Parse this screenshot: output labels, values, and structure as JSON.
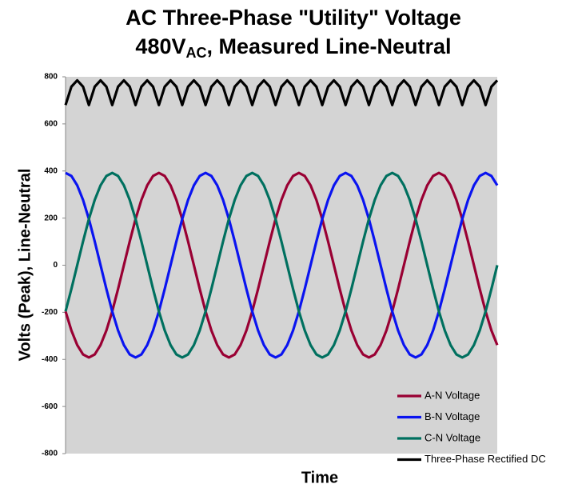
{
  "chart_data": {
    "type": "line",
    "title": "AC Three-Phase \"Utility\" Voltage",
    "subtitle": [
      "480V",
      "AC",
      ", Measured Line-Neutral"
    ],
    "ylabel": "Volts (Peak), Line-Neutral",
    "xlabel": "Time",
    "ylim": [
      -800,
      800
    ],
    "yticks": [
      -800,
      -600,
      -400,
      -200,
      0,
      200,
      400,
      600,
      800
    ],
    "grid": false,
    "legend": "lower right",
    "background": "#d4d4d4",
    "series": [
      {
        "name": "A-N Voltage",
        "color": "#990033",
        "values": [
          -196,
          -277,
          -339,
          -379,
          -392,
          -379,
          -339,
          -277,
          -196,
          -101,
          0,
          101,
          196,
          277,
          339,
          379,
          392,
          379,
          339,
          277,
          196,
          101,
          0,
          -101,
          -196,
          -277,
          -339,
          -379,
          -392,
          -379,
          -339,
          -277,
          -196,
          -101,
          0,
          101,
          196,
          277,
          339,
          379,
          392,
          379,
          339,
          277,
          196,
          101,
          0,
          -101,
          -196,
          -277,
          -339,
          -379,
          -392,
          -379,
          -339,
          -277,
          -196,
          -101,
          0,
          101,
          196,
          277,
          339,
          379,
          392,
          379,
          339,
          277,
          196,
          101,
          0,
          -101,
          -196,
          -277,
          -339
        ]
      },
      {
        "name": "B-N Voltage",
        "color": "#0a14f0",
        "values": [
          392,
          379,
          339,
          277,
          196,
          101,
          0,
          -101,
          -196,
          -277,
          -339,
          -379,
          -392,
          -379,
          -339,
          -277,
          -196,
          -101,
          0,
          101,
          196,
          277,
          339,
          379,
          392,
          379,
          339,
          277,
          196,
          101,
          0,
          -101,
          -196,
          -277,
          -339,
          -379,
          -392,
          -379,
          -339,
          -277,
          -196,
          -101,
          0,
          101,
          196,
          277,
          339,
          379,
          392,
          379,
          339,
          277,
          196,
          101,
          0,
          -101,
          -196,
          -277,
          -339,
          -379,
          -392,
          -379,
          -339,
          -277,
          -196,
          -101,
          0,
          101,
          196,
          277,
          339,
          379,
          392,
          379,
          339
        ]
      },
      {
        "name": "C-N Voltage",
        "color": "#00705f",
        "values": [
          -196,
          -101,
          0,
          101,
          196,
          277,
          339,
          379,
          392,
          379,
          339,
          277,
          196,
          101,
          0,
          -101,
          -196,
          -277,
          -339,
          -379,
          -392,
          -379,
          -339,
          -277,
          -196,
          -101,
          0,
          101,
          196,
          277,
          339,
          379,
          392,
          379,
          339,
          277,
          196,
          101,
          0,
          -101,
          -196,
          -277,
          -339,
          -379,
          -392,
          -379,
          -339,
          -277,
          -196,
          -101,
          0,
          101,
          196,
          277,
          339,
          379,
          392,
          379,
          339,
          277,
          196,
          101,
          0,
          -101,
          -196,
          -277,
          -339,
          -379,
          -392,
          -379,
          -339,
          -277,
          -196,
          -101,
          0
        ]
      },
      {
        "name": "Three-Phase Rectified DC",
        "color": "#000000",
        "values": [
          680,
          758,
          785,
          758,
          680,
          758,
          785,
          758,
          680,
          758,
          785,
          758,
          680,
          758,
          785,
          758,
          680,
          758,
          785,
          758,
          680,
          758,
          785,
          758,
          680,
          758,
          785,
          758,
          680,
          758,
          785,
          758,
          680,
          758,
          785,
          758,
          680,
          758,
          785,
          758,
          680,
          758,
          785,
          758,
          680,
          758,
          785,
          758,
          680,
          758,
          785,
          758,
          680,
          758,
          785,
          758,
          680,
          758,
          785,
          758,
          680,
          758,
          785,
          758,
          680,
          758,
          785,
          758,
          680,
          758,
          785,
          758,
          680,
          758,
          785
        ]
      }
    ]
  }
}
